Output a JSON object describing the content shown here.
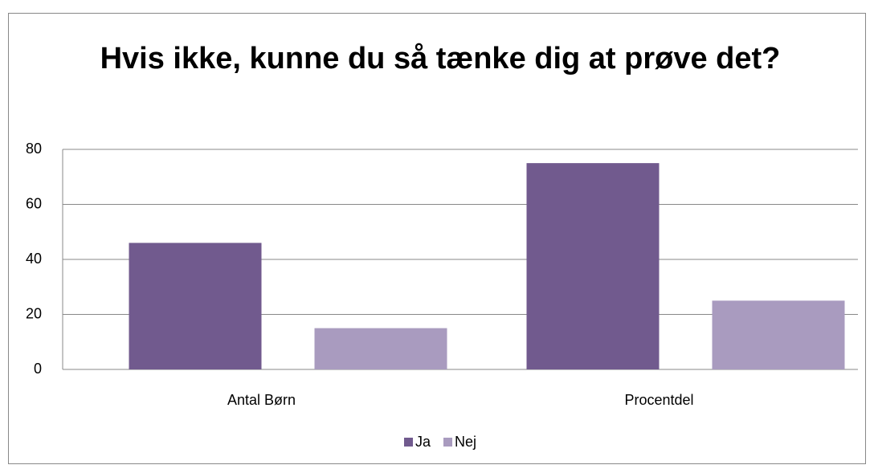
{
  "chart_data": {
    "type": "bar",
    "title": "Hvis ikke, kunne du så tænke dig at prøve det?",
    "categories": [
      "Antal Børn",
      "Procentdel"
    ],
    "series": [
      {
        "name": "Ja",
        "color": "#715a8e",
        "values": [
          46,
          75
        ]
      },
      {
        "name": "Nej",
        "color": "#a99bbf",
        "values": [
          15,
          25
        ]
      }
    ],
    "ylim": [
      0,
      80
    ],
    "yticks": [
      0,
      20,
      40,
      60,
      80
    ],
    "grid": true,
    "legend": "bottom"
  }
}
